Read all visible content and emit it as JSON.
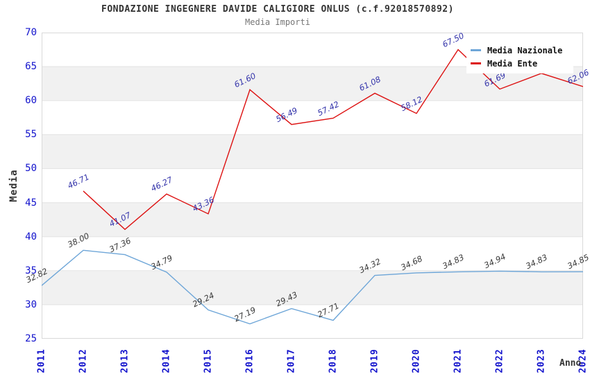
{
  "chart_data": {
    "type": "line",
    "title": "FONDAZIONE INGEGNERE DAVIDE CALIGIORE ONLUS (c.f.92018570892)",
    "subtitle": "Media Importi",
    "xlabel": "Anno",
    "ylabel": "Media",
    "ylim": [
      25,
      70
    ],
    "ytick_step": 5,
    "grid": "horizontal-bands",
    "band_color": "#f1f1f1",
    "gridline_color": "#e3e3e3",
    "axis_tick_color": "#1111cc",
    "legend_position": "top-right",
    "categories": [
      "2011",
      "2012",
      "2013",
      "2014",
      "2015",
      "2016",
      "2017",
      "2018",
      "2019",
      "2020",
      "2021",
      "2022",
      "2023",
      "2024"
    ],
    "series": [
      {
        "name": "Media Nazionale",
        "color": "#6ea6d8",
        "label_color": "#3a3a3a",
        "values": [
          32.82,
          38.0,
          37.36,
          34.79,
          29.24,
          27.19,
          29.43,
          27.71,
          34.32,
          34.68,
          34.83,
          34.94,
          34.83,
          34.85
        ],
        "labels": [
          "32.82",
          "38.00",
          "37.36",
          "34.79",
          "29.24",
          "27.19",
          "29.43",
          "27.71",
          "34.32",
          "34.68",
          "34.83",
          "34.94",
          "34.83",
          "34.85"
        ]
      },
      {
        "name": "Media Ente",
        "color": "#dd1111",
        "label_color": "#3333aa",
        "values": [
          null,
          46.71,
          41.07,
          46.27,
          43.36,
          61.6,
          56.49,
          57.42,
          61.08,
          58.12,
          67.5,
          61.69,
          64.0,
          62.06
        ],
        "labels": [
          null,
          "46.71",
          "41.07",
          "46.27",
          "43.36",
          "61.60",
          "56.49",
          "57.42",
          "61.08",
          "58.12",
          "67.50",
          "61.69",
          null,
          "62.06"
        ]
      }
    ]
  }
}
